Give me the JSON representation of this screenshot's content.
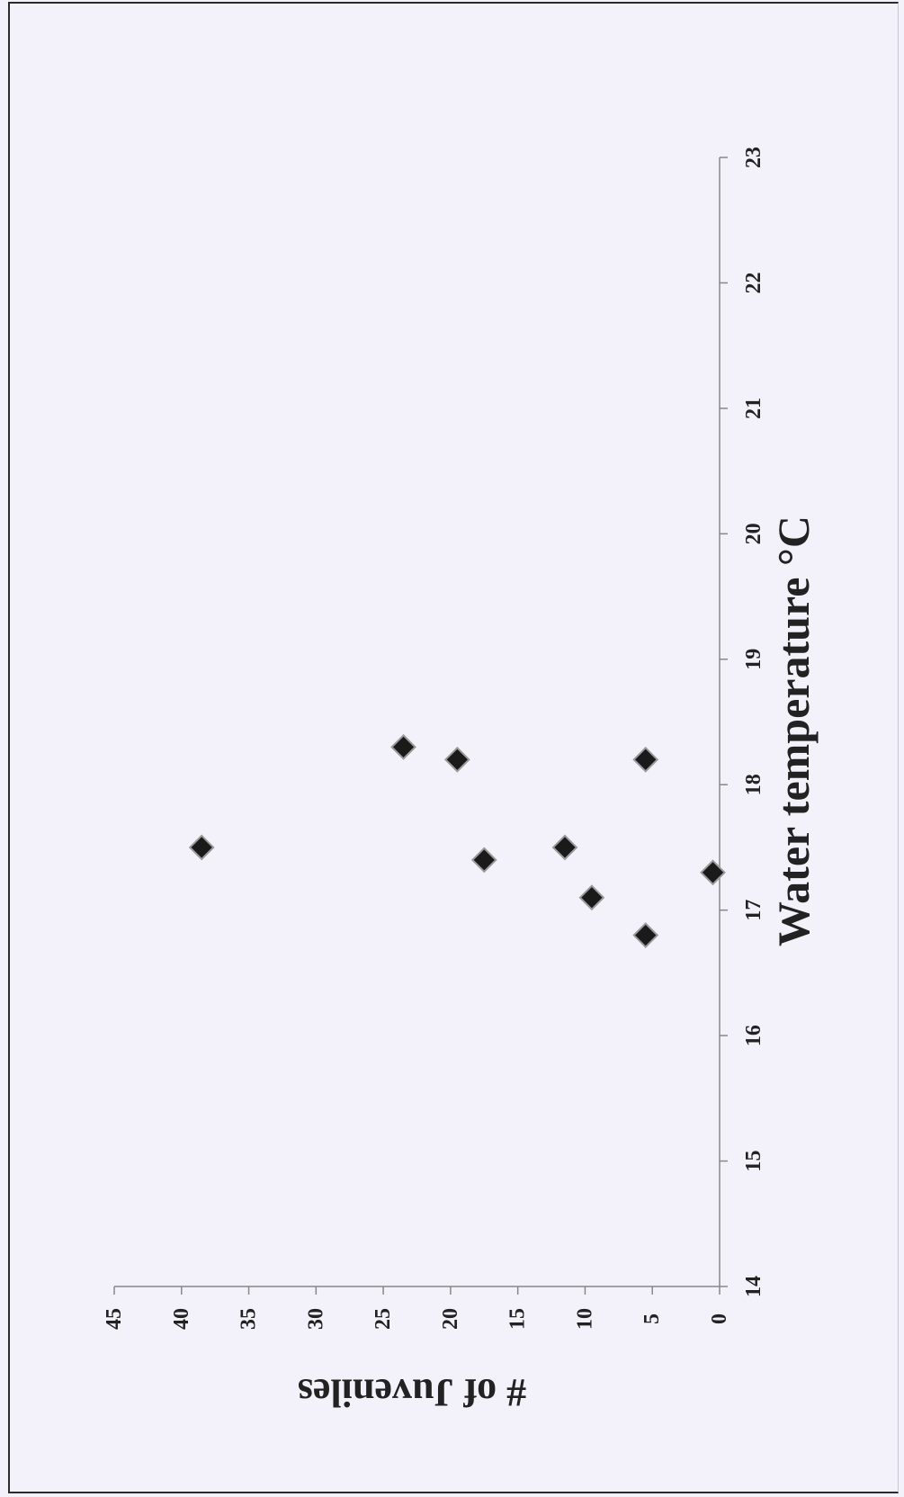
{
  "chart_data": {
    "type": "scatter",
    "title": "",
    "xlabel": "Water temperature °C",
    "ylabel": "# of Juveniles",
    "xlim": [
      14,
      23
    ],
    "ylim": [
      0,
      45
    ],
    "xticks": [
      14,
      15,
      16,
      17,
      18,
      19,
      20,
      21,
      22,
      23
    ],
    "yticks": [
      0,
      5,
      10,
      15,
      20,
      25,
      30,
      35,
      40,
      45
    ],
    "grid": false,
    "legend": "none",
    "marker": "diamond",
    "marker_color": "#1a1a1a",
    "series": [
      {
        "points": [
          {
            "x": 16.8,
            "y": 5.5
          },
          {
            "x": 17.1,
            "y": 9.5
          },
          {
            "x": 17.3,
            "y": 0.5
          },
          {
            "x": 17.4,
            "y": 17.5
          },
          {
            "x": 17.5,
            "y": 11.5
          },
          {
            "x": 17.5,
            "y": 38.5
          },
          {
            "x": 18.2,
            "y": 5.5
          },
          {
            "x": 18.2,
            "y": 19.5
          },
          {
            "x": 18.3,
            "y": 23.5
          }
        ]
      }
    ]
  }
}
